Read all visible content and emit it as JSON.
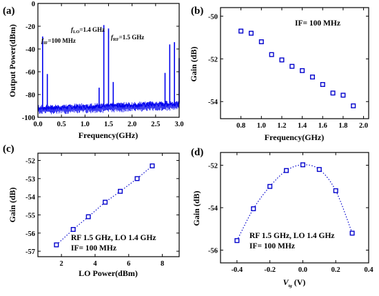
{
  "chart_data": [
    {
      "id": "a",
      "panel_label": "(a)",
      "type": "line",
      "xlabel": "Frequency(GHz)",
      "ylabel": "Output Power(dBm)",
      "xlim": [
        0,
        3.0
      ],
      "ylim": [
        -100,
        0
      ],
      "xticks": [
        0.0,
        0.5,
        1.0,
        1.5,
        2.0,
        2.5,
        3.0
      ],
      "yticks": [
        0,
        -20,
        -40,
        -60,
        -80,
        -100
      ],
      "xtick_labels": [
        "0.0",
        "0.5",
        "1.0",
        "1.5",
        "2.0",
        "2.5",
        "3.0"
      ],
      "ytick_labels": [
        "0",
        "-20",
        "-40",
        "-60",
        "-80",
        "-100"
      ],
      "color": "#0000ee",
      "noise_floor_dBm": -92,
      "peaks": [
        {
          "x": 0.1,
          "y": -29
        },
        {
          "x": 0.2,
          "y": -62
        },
        {
          "x": 1.3,
          "y": -74
        },
        {
          "x": 1.4,
          "y": -19
        },
        {
          "x": 1.5,
          "y": -22
        },
        {
          "x": 1.6,
          "y": -69
        },
        {
          "x": 2.7,
          "y": -61
        },
        {
          "x": 2.8,
          "y": -36
        },
        {
          "x": 2.9,
          "y": -34
        },
        {
          "x": 3.0,
          "y": -48
        }
      ],
      "annotations": [
        {
          "main": "f",
          "sub": "IF",
          "rest": "=100 MHz"
        },
        {
          "main": "f",
          "sub": "LO",
          "rest": "=1.4 GHz"
        },
        {
          "main": "f",
          "sub": "RF",
          "rest": "=1.5 GHz"
        }
      ]
    },
    {
      "id": "b",
      "panel_label": "(b)",
      "type": "scatter",
      "xlabel": "Frequency(GHz)",
      "ylabel": "Gain (dB)",
      "xlim": [
        0.6,
        2.05
      ],
      "ylim": [
        -54.8,
        -49.6
      ],
      "xticks": [
        0.8,
        1.0,
        1.2,
        1.4,
        1.6,
        1.8,
        2.0
      ],
      "yticks": [
        -50,
        -52,
        -54
      ],
      "xtick_labels": [
        "0.8",
        "1.0",
        "1.2",
        "1.4",
        "1.6",
        "1.8",
        "2.0"
      ],
      "ytick_labels": [
        "-50",
        "-52",
        "-54"
      ],
      "x": [
        0.8,
        0.9,
        1.0,
        1.1,
        1.2,
        1.3,
        1.4,
        1.5,
        1.6,
        1.7,
        1.8,
        1.9
      ],
      "y": [
        -50.7,
        -50.8,
        -51.2,
        -51.8,
        -52.05,
        -52.35,
        -52.55,
        -52.85,
        -53.2,
        -53.6,
        -53.7,
        -54.2
      ],
      "marker": "square",
      "color": "#0000cc",
      "annotation": "IF= 100 MHz"
    },
    {
      "id": "c",
      "panel_label": "(c)",
      "type": "line",
      "xlabel": "LO Power(dBm)",
      "ylabel": "Gain (dB)",
      "xlim": [
        0.6,
        9.0
      ],
      "ylim": [
        -57.3,
        -51.6
      ],
      "xticks": [
        2,
        4,
        6,
        8
      ],
      "yticks": [
        -52,
        -53,
        -54,
        -55,
        -56,
        -57
      ],
      "xtick_labels": [
        "2",
        "4",
        "6",
        "8"
      ],
      "ytick_labels": [
        "-52",
        "-53",
        "-54",
        "-55",
        "-56",
        "-57"
      ],
      "x": [
        1.7,
        2.7,
        3.6,
        4.6,
        5.5,
        6.5,
        7.4
      ],
      "y": [
        -56.65,
        -55.8,
        -55.1,
        -54.3,
        -53.7,
        -53.0,
        -52.3
      ],
      "marker": "square",
      "linestyle": "dotted",
      "color": "#0000cc",
      "annotation_lines": [
        "RF 1.5 GHz, LO 1.4 GHz",
        "IF= 100 MHz"
      ]
    },
    {
      "id": "d",
      "panel_label": "(d)",
      "type": "line",
      "xlabel_main": "V",
      "xlabel_sub": "tg",
      "xlabel_rest": " (V)",
      "ylabel": "Gain (dB)",
      "xlim": [
        -0.5,
        0.4
      ],
      "ylim": [
        -56.6,
        -51.4
      ],
      "xticks": [
        -0.4,
        -0.2,
        0.0,
        0.2,
        0.4
      ],
      "yticks": [
        -52,
        -54,
        -56
      ],
      "xtick_labels": [
        "-0.4",
        "-0.2",
        "0.0",
        "0.2",
        "0.4"
      ],
      "ytick_labels": [
        "-52",
        "-54",
        "-56"
      ],
      "x": [
        -0.4,
        -0.3,
        -0.2,
        -0.1,
        0.0,
        0.1,
        0.2,
        0.3
      ],
      "y": [
        -55.55,
        -54.05,
        -53.0,
        -52.25,
        -51.98,
        -52.2,
        -53.2,
        -55.2
      ],
      "marker": "square",
      "linestyle": "dotted",
      "color": "#0000cc",
      "annotation_lines": [
        "RF 1.5 GHz, LO 1.4 GHz",
        "IF= 100 MHz"
      ]
    }
  ]
}
